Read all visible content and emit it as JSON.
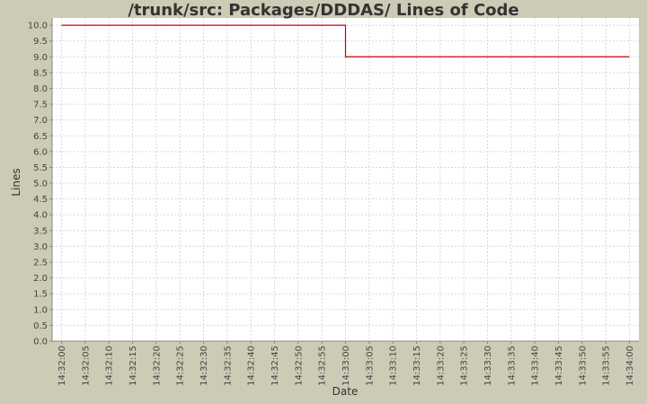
{
  "chart_data": {
    "type": "step-line",
    "title": "/trunk/src: Packages/DDDAS/ Lines of Code",
    "x_label": "Date",
    "y_label": "Lines",
    "x": [
      "14:32:00",
      "14:33:00",
      "14:34:00"
    ],
    "series": [
      {
        "color": "#cc0000",
        "values": [
          10,
          9,
          9
        ]
      }
    ],
    "xlim": [
      "14:31:58",
      "14:34:02"
    ],
    "xticks": [
      "14:32:00",
      "14:32:05",
      "14:32:10",
      "14:32:15",
      "14:32:20",
      "14:32:25",
      "14:32:30",
      "14:32:35",
      "14:32:40",
      "14:32:45",
      "14:32:50",
      "14:32:55",
      "14:33:00",
      "14:33:05",
      "14:33:10",
      "14:33:15",
      "14:33:20",
      "14:33:25",
      "14:33:30",
      "14:33:35",
      "14:33:40",
      "14:33:45",
      "14:33:50",
      "14:33:55",
      "14:34:00"
    ],
    "ylim": [
      0,
      10.23
    ],
    "yticks": [
      {
        "value": 0,
        "label": "0.0"
      },
      {
        "value": 0.5,
        "label": "0.5"
      },
      {
        "value": 1,
        "label": "1.0"
      },
      {
        "value": 1.5,
        "label": "1.5"
      },
      {
        "value": 2,
        "label": "2.0"
      },
      {
        "value": 2.5,
        "label": "2.5"
      },
      {
        "value": 3,
        "label": "3.0"
      },
      {
        "value": 3.5,
        "label": "3.5"
      },
      {
        "value": 4,
        "label": "4.0"
      },
      {
        "value": 4.5,
        "label": "4.5"
      },
      {
        "value": 5,
        "label": "5.0"
      },
      {
        "value": 5.5,
        "label": "5.5"
      },
      {
        "value": 6,
        "label": "6.0"
      },
      {
        "value": 6.5,
        "label": "6.5"
      },
      {
        "value": 7,
        "label": "7.0"
      },
      {
        "value": 7.5,
        "label": "7.5"
      },
      {
        "value": 8,
        "label": "8.0"
      },
      {
        "value": 8.5,
        "label": "8.5"
      },
      {
        "value": 9,
        "label": "9.0"
      },
      {
        "value": 9.5,
        "label": "9.5"
      },
      {
        "value": 10,
        "label": "10.0"
      }
    ],
    "grid": true
  }
}
